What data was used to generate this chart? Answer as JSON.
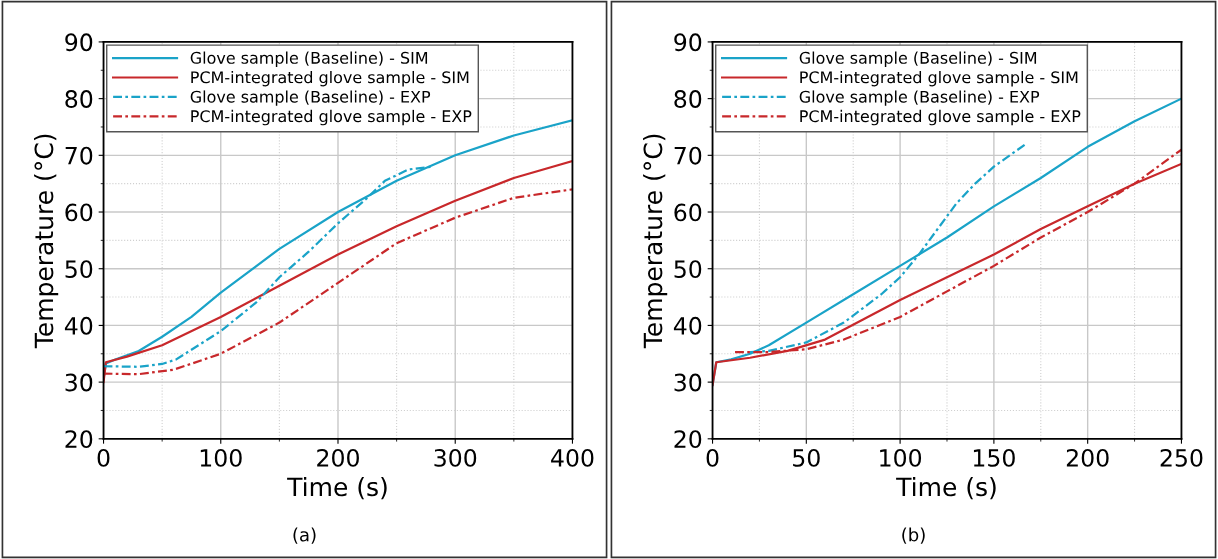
{
  "chart_data": [
    {
      "type": "line",
      "xlabel": "Time (s)",
      "ylabel": "Temperature (°C)",
      "annotations": [
        "(a)"
      ],
      "xlim": [
        0,
        400
      ],
      "xticks": [
        0,
        100,
        200,
        300,
        400
      ],
      "ylim": [
        20,
        90
      ],
      "yticks": [
        20,
        30,
        40,
        50,
        60,
        70,
        80,
        90
      ],
      "grid": true,
      "legend": "top left",
      "marker": "none",
      "series": [
        {
          "name": "Glove sample (Baseline) - SIM",
          "color": "#1aa3c8",
          "line_style": "solid",
          "x": [
            0,
            2,
            10,
            30,
            50,
            75,
            100,
            150,
            200,
            250,
            300,
            350,
            400
          ],
          "values": [
            30.5,
            33.3,
            34,
            35.5,
            38,
            41.5,
            45.8,
            53.5,
            60,
            65.5,
            70,
            73.5,
            76.2
          ]
        },
        {
          "name": "PCM-integrated glove sample - SIM",
          "color": "#c8282b",
          "line_style": "solid",
          "x": [
            0,
            2,
            20,
            50,
            100,
            150,
            200,
            250,
            300,
            350,
            400
          ],
          "values": [
            30,
            33.5,
            34.5,
            36.5,
            41.5,
            47,
            52.5,
            57.5,
            62,
            66,
            69
          ]
        },
        {
          "name": "Glove sample (Baseline) - EXP",
          "color": "#1aa3c8",
          "line_style": "dashdot",
          "x": [
            0,
            30,
            50,
            62,
            100,
            130,
            150,
            175,
            200,
            225,
            240,
            260,
            280
          ],
          "values": [
            32.8,
            32.7,
            33.2,
            34,
            39,
            44,
            48.5,
            53,
            58,
            62.5,
            65.5,
            67.5,
            68
          ]
        },
        {
          "name": "PCM-integrated glove sample - EXP",
          "color": "#c8282b",
          "line_style": "dashdot",
          "x": [
            0,
            30,
            60,
            100,
            150,
            200,
            250,
            300,
            350,
            400
          ],
          "values": [
            31.5,
            31.4,
            32.2,
            35,
            40.5,
            47.5,
            54.5,
            59,
            62.5,
            64
          ]
        }
      ]
    },
    {
      "type": "line",
      "xlabel": "Time (s)",
      "ylabel": "Temperature (°C)",
      "annotations": [
        "(b)"
      ],
      "xlim": [
        0,
        250
      ],
      "xticks": [
        0,
        50,
        100,
        150,
        200,
        250
      ],
      "ylim": [
        20,
        90
      ],
      "yticks": [
        20,
        30,
        40,
        50,
        60,
        70,
        80,
        90
      ],
      "grid": true,
      "legend": "top left",
      "marker": "none",
      "series": [
        {
          "name": "Glove sample (Baseline) - SIM",
          "color": "#1aa3c8",
          "line_style": "solid",
          "x": [
            0,
            2,
            10,
            20,
            30,
            50,
            75,
            100,
            125,
            150,
            175,
            200,
            225,
            250
          ],
          "values": [
            29.5,
            33.5,
            34,
            35,
            36.5,
            40.5,
            45.5,
            50.5,
            55.5,
            61,
            66,
            71.5,
            76,
            80
          ]
        },
        {
          "name": "PCM-integrated glove sample - SIM",
          "color": "#c8282b",
          "line_style": "solid",
          "x": [
            0,
            2,
            20,
            40,
            60,
            80,
            100,
            125,
            150,
            175,
            200,
            225,
            250
          ],
          "values": [
            29.5,
            33.5,
            34.3,
            35.5,
            37.5,
            41,
            44.5,
            48.5,
            52.5,
            57,
            61,
            65,
            68.5
          ]
        },
        {
          "name": "Glove sample (Baseline) - EXP",
          "color": "#1aa3c8",
          "line_style": "dashdot",
          "x": [
            20,
            30,
            50,
            70,
            90,
            100,
            110,
            120,
            130,
            140,
            150,
            167
          ],
          "values": [
            35.3,
            35.5,
            37,
            40.5,
            45.5,
            48.5,
            52.5,
            57,
            61.5,
            65,
            68,
            72
          ]
        },
        {
          "name": "PCM-integrated glove sample - EXP",
          "color": "#c8282b",
          "line_style": "dashdot",
          "x": [
            12,
            30,
            50,
            70,
            100,
            125,
            150,
            175,
            200,
            225,
            250
          ],
          "values": [
            35.3,
            35.3,
            35.8,
            37.5,
            41.5,
            46,
            50.5,
            55.5,
            60,
            65,
            71
          ]
        }
      ]
    }
  ]
}
